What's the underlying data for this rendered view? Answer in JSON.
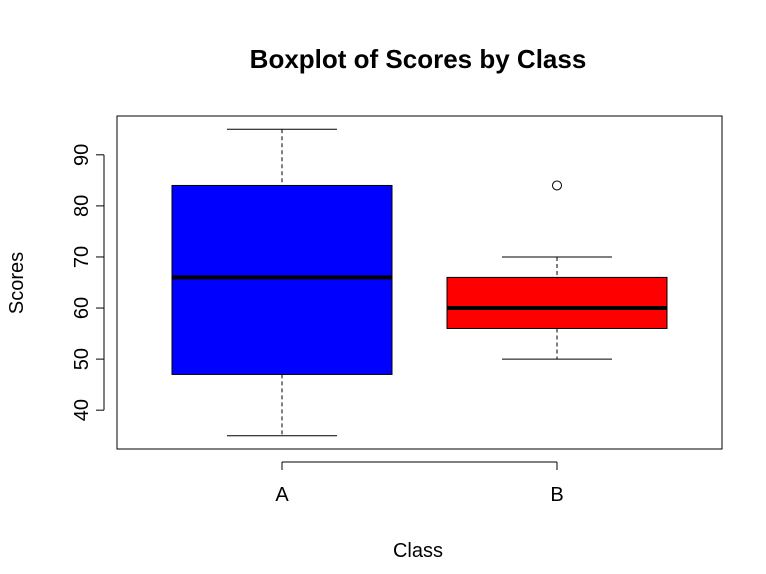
{
  "chart_data": {
    "type": "boxplot",
    "title": "Boxplot of Scores by Class",
    "xlabel": "Class",
    "ylabel": "Scores",
    "categories": [
      "A",
      "B"
    ],
    "ylim": [
      32.4,
      97.6
    ],
    "yticks": [
      40,
      50,
      60,
      70,
      80,
      90
    ],
    "grid": false,
    "legend": "none",
    "boxes": [
      {
        "category": "A",
        "whisker_low": 35,
        "q1": 47,
        "median": 66,
        "q3": 84,
        "whisker_high": 95,
        "outliers": [],
        "color": "#0000ff"
      },
      {
        "category": "B",
        "whisker_low": 50,
        "q1": 56,
        "median": 60,
        "q3": 66,
        "whisker_high": 70,
        "outliers": [
          84
        ],
        "color": "#ff0000"
      }
    ]
  }
}
